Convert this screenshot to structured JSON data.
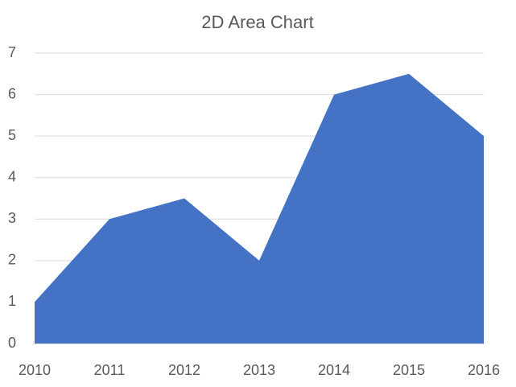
{
  "chart_data": {
    "type": "area",
    "title": "2D Area Chart",
    "categories": [
      "2010",
      "2011",
      "2012",
      "2013",
      "2014",
      "2015",
      "2016"
    ],
    "values": [
      1,
      3,
      3.5,
      2,
      6,
      6.5,
      5
    ],
    "color": "#4472c4",
    "ylim": [
      0,
      7
    ],
    "yticks": [
      0,
      1,
      2,
      3,
      4,
      5,
      6,
      7
    ],
    "grid": true
  }
}
